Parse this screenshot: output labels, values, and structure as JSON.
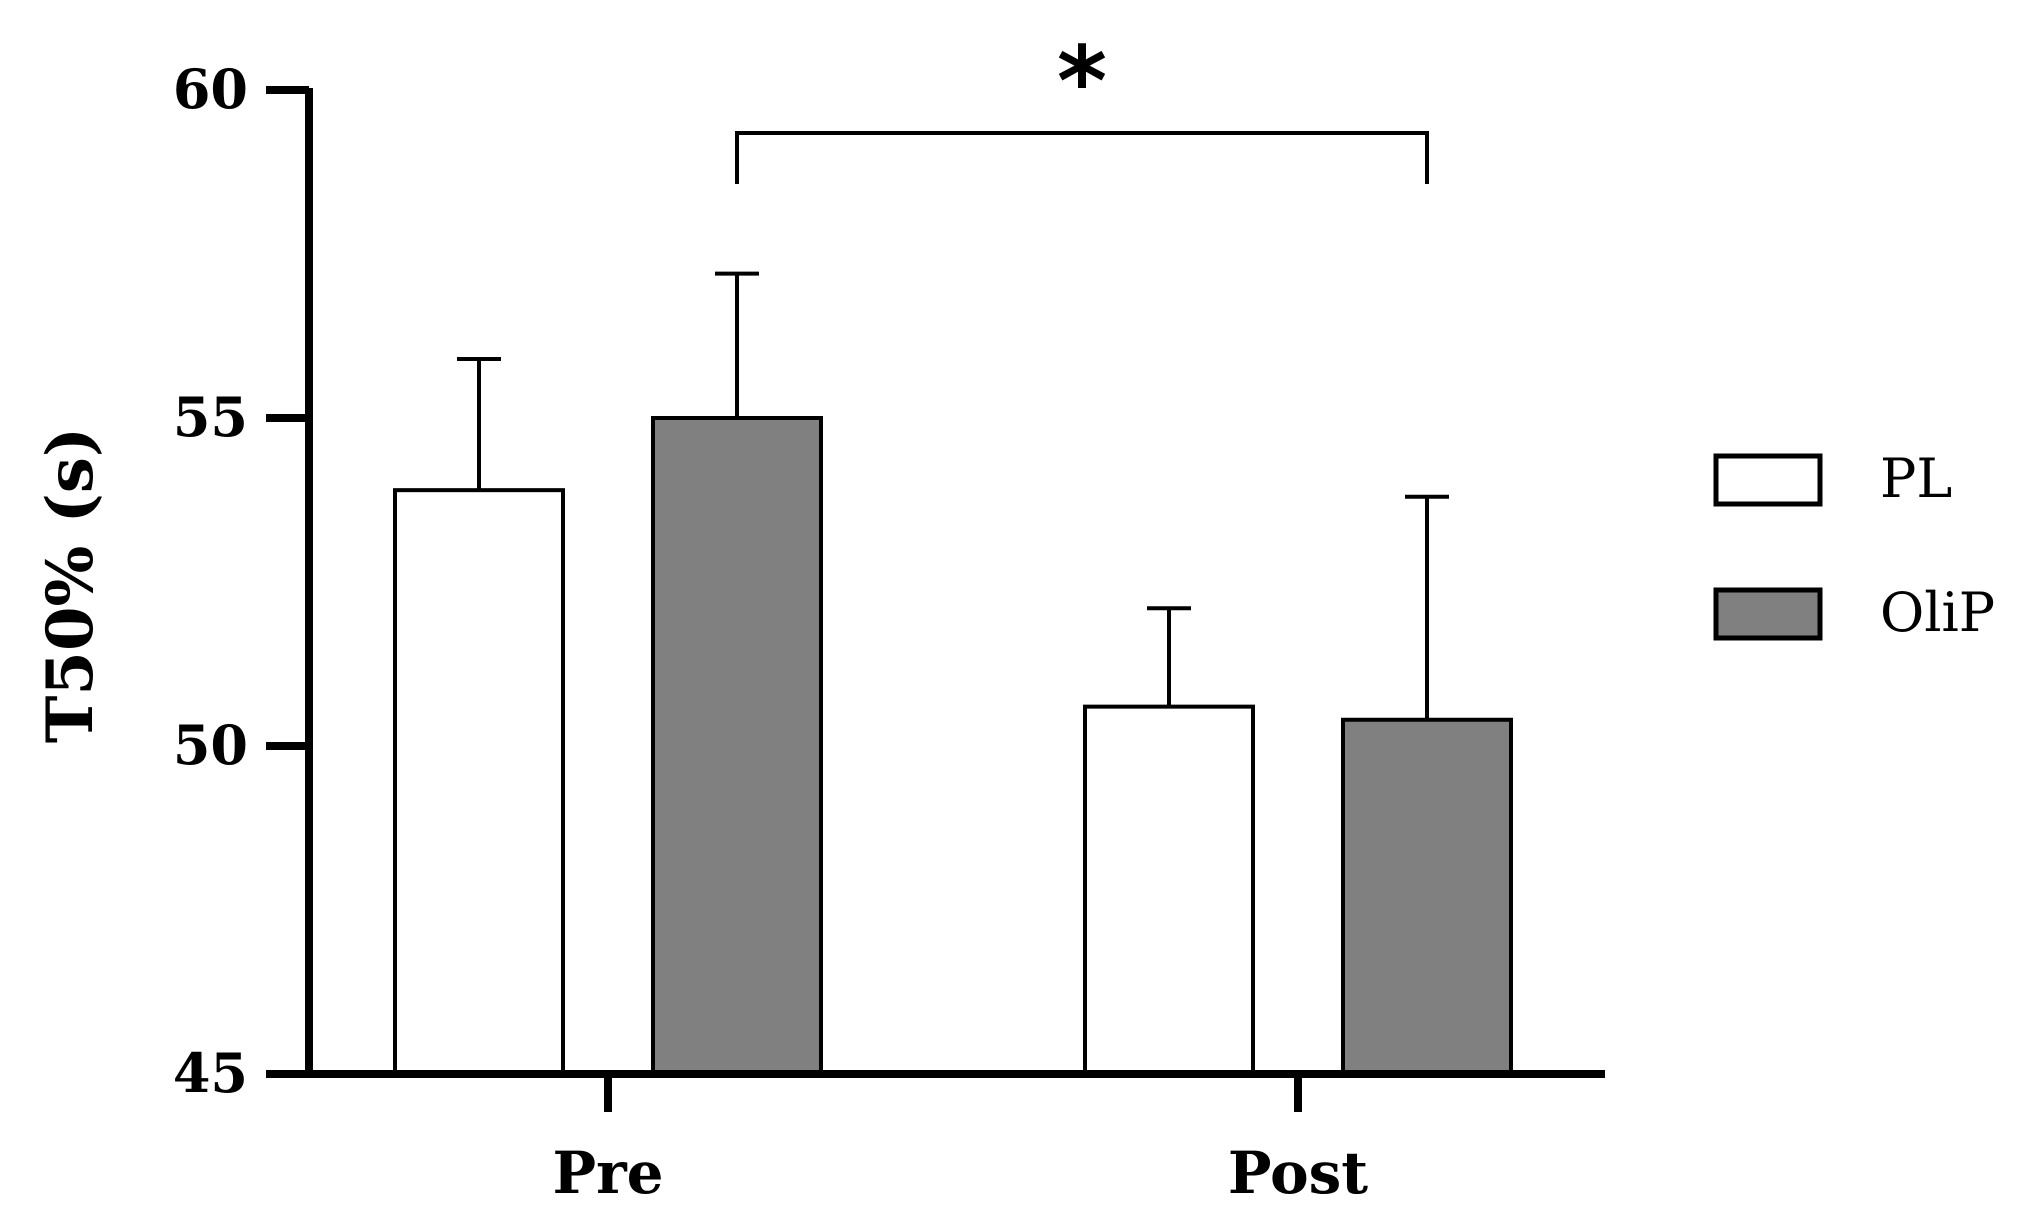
{
  "chart_data": {
    "type": "bar",
    "categories": [
      "Pre",
      "Post"
    ],
    "series": [
      {
        "name": "PL",
        "values": [
          53.9,
          50.6
        ],
        "errors": [
          2.0,
          1.5
        ],
        "color": "#ffffff"
      },
      {
        "name": "OliP",
        "values": [
          55.0,
          50.4
        ],
        "errors": [
          2.2,
          3.4
        ],
        "color": "#808080"
      }
    ],
    "ylabel": "T50% (s)",
    "xlabel": "",
    "ylim": [
      45,
      60
    ],
    "yticks": [
      45,
      50,
      55,
      60
    ],
    "legend_position": "right",
    "grid": false,
    "significance": {
      "label": "*",
      "from_category": "Pre",
      "to_category": "Post"
    }
  }
}
